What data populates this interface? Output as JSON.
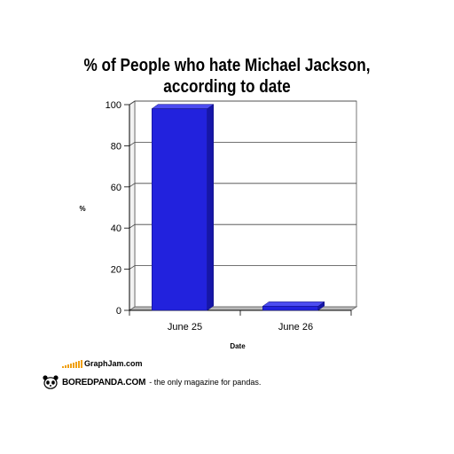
{
  "chart_data": {
    "type": "bar",
    "title_lines": [
      "% of People who hate Michael Jackson,",
      "according to date"
    ],
    "categories": [
      "June 25",
      "June 26"
    ],
    "values": [
      98,
      2
    ],
    "xlabel": "Date",
    "ylabel": "%",
    "ylim": [
      0,
      100
    ],
    "yticks": [
      0,
      20,
      40,
      60,
      80,
      100
    ],
    "grid": true,
    "bar_color": "#2222dd",
    "bar_side_color": "#1616a8",
    "bar_top_color": "#4c4cf0"
  },
  "footer": {
    "graphjam": "GraphJam.com",
    "boredpanda": "BOREDPANDA.COM",
    "tagline": "- the only magazine for pandas."
  }
}
